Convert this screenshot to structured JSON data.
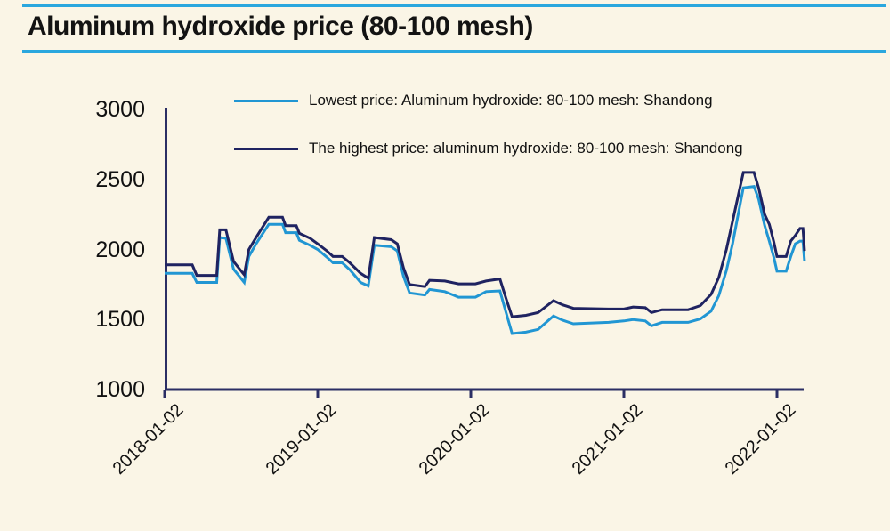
{
  "page": {
    "background_color": "#FAF5E6",
    "accent_line_color": "#2AA7DE"
  },
  "header": {
    "title": "Aluminum hydroxide price (80-100 mesh)"
  },
  "legend": {
    "items": [
      {
        "label": "Lowest price: Aluminum hydroxide: 80-100 mesh: Shandong",
        "color": "#2196D3"
      },
      {
        "label": "The highest price: aluminum hydroxide: 80-100 mesh: Shandong",
        "color": "#1F2361"
      }
    ]
  },
  "chart_data": {
    "type": "line",
    "title": "Aluminum hydroxide price (80-100 mesh)",
    "xlabel": "",
    "ylabel": "",
    "ylim": [
      1000,
      3000
    ],
    "y_ticks": [
      3000,
      2500,
      2000,
      1500,
      1000
    ],
    "x_tick_labels": [
      "2018-01-02",
      "2019-01-02",
      "2020-01-02",
      "2021-01-02",
      "2022-01-02"
    ],
    "x_tick_years": [
      0,
      1,
      2,
      3,
      4
    ],
    "x_unit": "years since 2018-01-02",
    "xlim": [
      0,
      4.25
    ],
    "grid": false,
    "legend_position": "upper center",
    "axis_color": "#2B2E64",
    "x": [
      0.0,
      0.18,
      0.21,
      0.34,
      0.36,
      0.4,
      0.45,
      0.52,
      0.55,
      0.6,
      0.68,
      0.77,
      0.79,
      0.86,
      0.88,
      0.95,
      1.0,
      1.06,
      1.1,
      1.16,
      1.21,
      1.28,
      1.33,
      1.37,
      1.48,
      1.52,
      1.56,
      1.6,
      1.7,
      1.73,
      1.83,
      1.92,
      2.03,
      2.1,
      2.19,
      2.23,
      2.27,
      2.36,
      2.44,
      2.54,
      2.6,
      2.67,
      2.9,
      3.0,
      3.06,
      3.14,
      3.18,
      3.25,
      3.42,
      3.5,
      3.57,
      3.62,
      3.67,
      3.71,
      3.75,
      3.78,
      3.85,
      3.88,
      3.92,
      3.95,
      3.98,
      4.0,
      4.06,
      4.09,
      4.12,
      4.15,
      4.17,
      4.18
    ],
    "series": [
      {
        "name": "Lowest price: Aluminum hydroxide: 80-100 mesh: Shandong",
        "color": "#2196D3",
        "values": [
          1830,
          1830,
          1765,
          1765,
          2085,
          2080,
          1860,
          1765,
          1950,
          2045,
          2180,
          2180,
          2120,
          2120,
          2065,
          2030,
          2000,
          1945,
          1905,
          1905,
          1855,
          1765,
          1740,
          2030,
          2020,
          1990,
          1810,
          1690,
          1675,
          1715,
          1700,
          1660,
          1660,
          1700,
          1705,
          1550,
          1400,
          1410,
          1430,
          1525,
          1495,
          1470,
          1480,
          1490,
          1500,
          1490,
          1455,
          1480,
          1480,
          1505,
          1560,
          1670,
          1850,
          2040,
          2270,
          2440,
          2450,
          2360,
          2170,
          2060,
          1940,
          1845,
          1845,
          1950,
          2040,
          2060,
          2060,
          1915
        ]
      },
      {
        "name": "The highest price: aluminum hydroxide: 80-100 mesh: Shandong",
        "color": "#1F2361",
        "values": [
          1890,
          1890,
          1815,
          1815,
          2140,
          2140,
          1915,
          1820,
          2000,
          2090,
          2230,
          2230,
          2170,
          2170,
          2115,
          2080,
          2040,
          1990,
          1950,
          1950,
          1905,
          1830,
          1795,
          2085,
          2070,
          2040,
          1870,
          1750,
          1735,
          1780,
          1775,
          1755,
          1755,
          1775,
          1790,
          1650,
          1520,
          1530,
          1550,
          1635,
          1605,
          1580,
          1575,
          1575,
          1590,
          1585,
          1550,
          1570,
          1570,
          1600,
          1680,
          1800,
          2000,
          2200,
          2400,
          2550,
          2550,
          2440,
          2250,
          2180,
          2050,
          1950,
          1950,
          2060,
          2100,
          2150,
          2150,
          1990
        ]
      }
    ]
  }
}
